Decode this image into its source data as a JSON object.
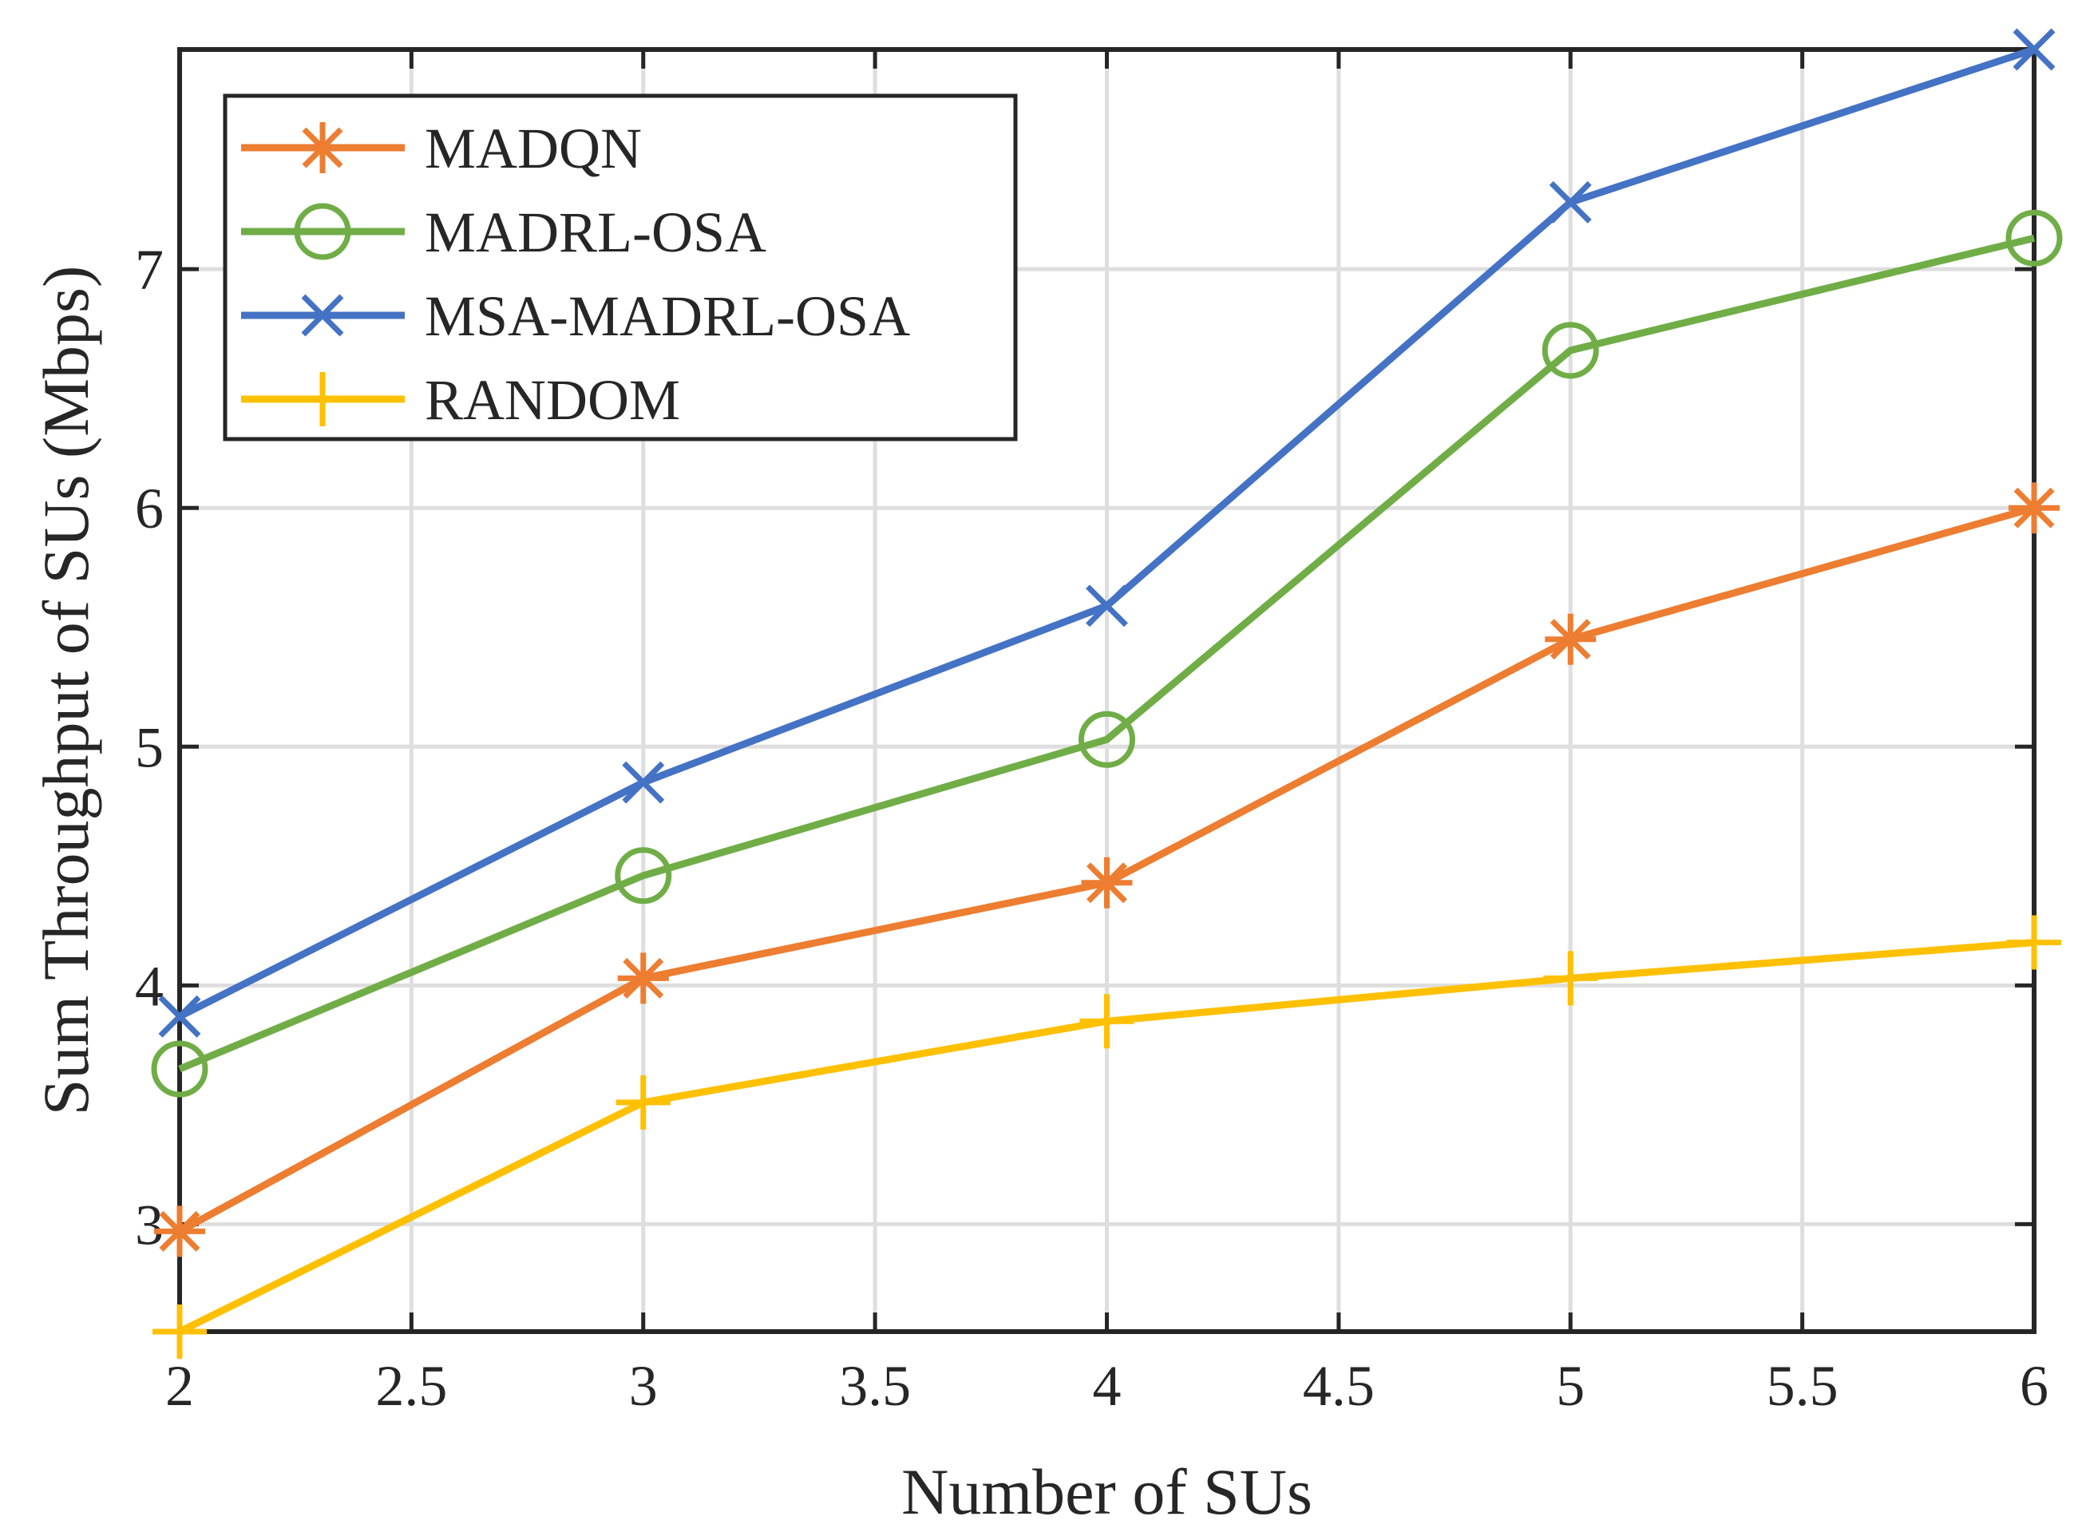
{
  "chart_data": {
    "type": "line",
    "title": "",
    "xlabel": "Number of SUs",
    "ylabel": "Sum Throughput of SUs (Mbps)",
    "xlim": [
      2,
      6
    ],
    "ylim": [
      2.55,
      7.92
    ],
    "xticks": [
      2,
      2.5,
      3,
      3.5,
      4,
      4.5,
      5,
      5.5,
      6
    ],
    "xtick_labels": [
      "2",
      "2.5",
      "3",
      "3.5",
      "4",
      "4.5",
      "5",
      "5.5",
      "6"
    ],
    "yticks": [
      3,
      4,
      5,
      6,
      7
    ],
    "ytick_labels": [
      "3",
      "4",
      "5",
      "6",
      "7"
    ],
    "grid": true,
    "legend_position": "top-left",
    "x": [
      2,
      3,
      4,
      5,
      6
    ],
    "series": [
      {
        "name": "MADQN",
        "color": "#ED7D31",
        "marker": "asterisk",
        "values": [
          2.97,
          4.03,
          4.43,
          5.45,
          6.0
        ]
      },
      {
        "name": "MADRL-OSA",
        "color": "#70AD47",
        "marker": "circle",
        "values": [
          3.65,
          4.46,
          5.03,
          6.66,
          7.13
        ]
      },
      {
        "name": "MSA-MADRL-OSA",
        "color": "#4472C4",
        "marker": "x",
        "values": [
          3.87,
          4.85,
          5.59,
          7.28,
          7.92
        ]
      },
      {
        "name": "RANDOM",
        "color": "#FFC000",
        "marker": "plus",
        "values": [
          2.55,
          3.51,
          3.85,
          4.03,
          4.18
        ]
      }
    ]
  }
}
